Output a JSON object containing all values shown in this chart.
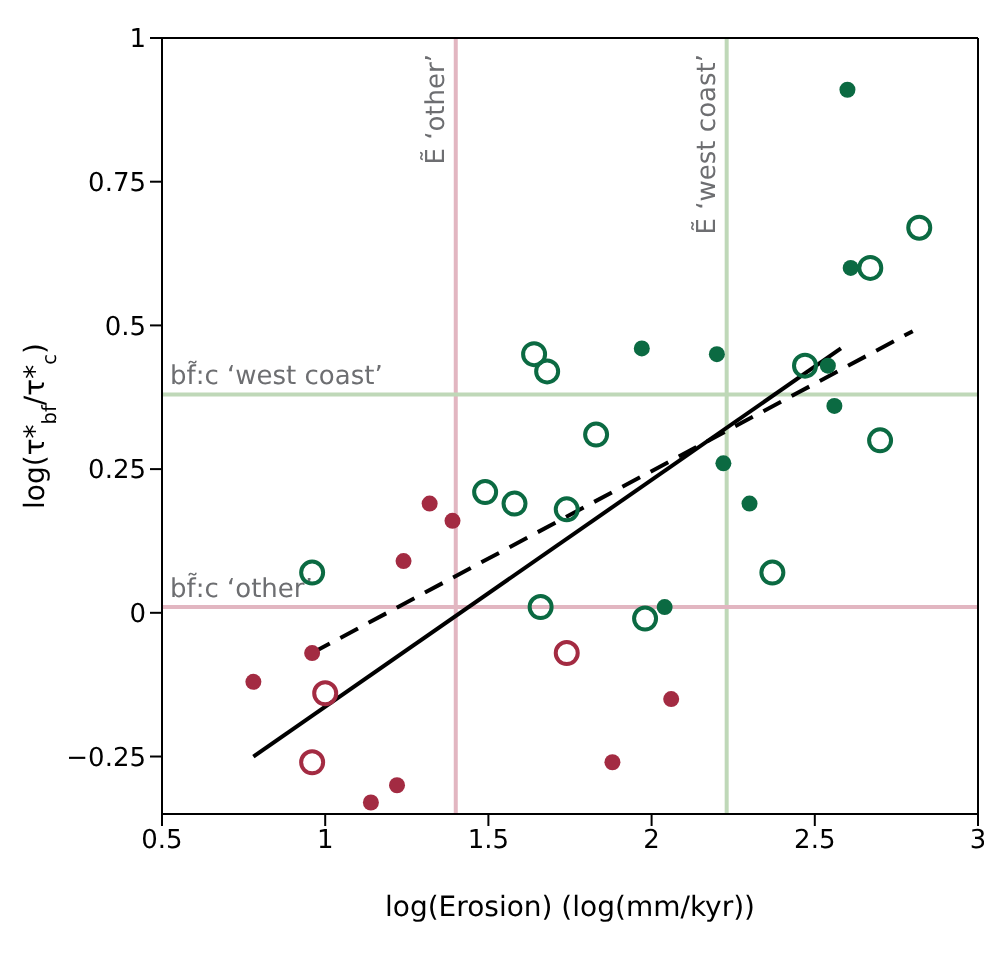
{
  "chart_data": {
    "type": "scatter",
    "xlabel": "log(Erosion) (log(mm/kyr))",
    "ylabel": "log(τ*$_{bf}$/τ*$_{c}$)",
    "xlim": [
      0.5,
      3
    ],
    "xticks": [
      0.5,
      1,
      1.5,
      2,
      2.5,
      3
    ],
    "ylim": [
      -0.35,
      1
    ],
    "yticks": [
      {
        "value": -0.25,
        "label": "−0.25"
      },
      0,
      0.25,
      0.5,
      0.75,
      1
    ],
    "grid": false,
    "marker": "circle",
    "ref_lines": [
      {
        "axis": "x",
        "value": 1.4,
        "label": "Ẽ ‘other’",
        "color": "#e2b6c1"
      },
      {
        "axis": "x",
        "value": 2.23,
        "label": "Ẽ ‘west coast’",
        "color": "#bfd8b8"
      },
      {
        "axis": "y",
        "value": 0.38,
        "label": "bf̃:c ‘west coast’",
        "color": "#bfd8b8"
      },
      {
        "axis": "y",
        "value": 0.01,
        "label": "bf̃:c ‘other’",
        "color": "#e2b6c1"
      }
    ],
    "series": [
      {
        "color": "#0b6a42",
        "x": [
          2.6,
          2.61,
          1.97,
          2.2,
          2.54,
          2.56,
          2.22,
          2.3,
          2.04
        ],
        "values": [
          0.91,
          0.6,
          0.46,
          0.45,
          0.43,
          0.36,
          0.26,
          0.19,
          0.01
        ]
      },
      {
        "color": "#0b6a42",
        "marker": "circle-open",
        "x": [
          2.82,
          2.67,
          2.47,
          1.64,
          1.68,
          1.83,
          2.7,
          1.49,
          1.58,
          1.74,
          0.96,
          2.37,
          1.66,
          1.98
        ],
        "values": [
          0.67,
          0.6,
          0.43,
          0.45,
          0.42,
          0.31,
          0.3,
          0.21,
          0.19,
          0.18,
          0.07,
          0.07,
          0.01,
          -0.01
        ]
      },
      {
        "color": "#a32b42",
        "x": [
          1.32,
          1.39,
          1.24,
          0.96,
          0.78,
          2.06,
          1.88,
          1.22,
          1.14
        ],
        "values": [
          0.19,
          0.16,
          0.09,
          -0.07,
          -0.12,
          -0.15,
          -0.26,
          -0.3,
          -0.33
        ]
      },
      {
        "color": "#a32b42",
        "marker": "circle-open",
        "x": [
          1.74,
          1.0,
          0.96
        ],
        "values": [
          -0.07,
          -0.14,
          -0.26
        ]
      },
      {
        "type": "line",
        "color": "#000000",
        "line_style": "solid",
        "marker": "none",
        "x": [
          0.78,
          2.58
        ],
        "values": [
          -0.25,
          0.46
        ]
      },
      {
        "type": "line",
        "color": "#000000",
        "line_style": "dashed",
        "marker": "none",
        "x": [
          0.96,
          2.8
        ],
        "values": [
          -0.07,
          0.49
        ]
      }
    ]
  }
}
